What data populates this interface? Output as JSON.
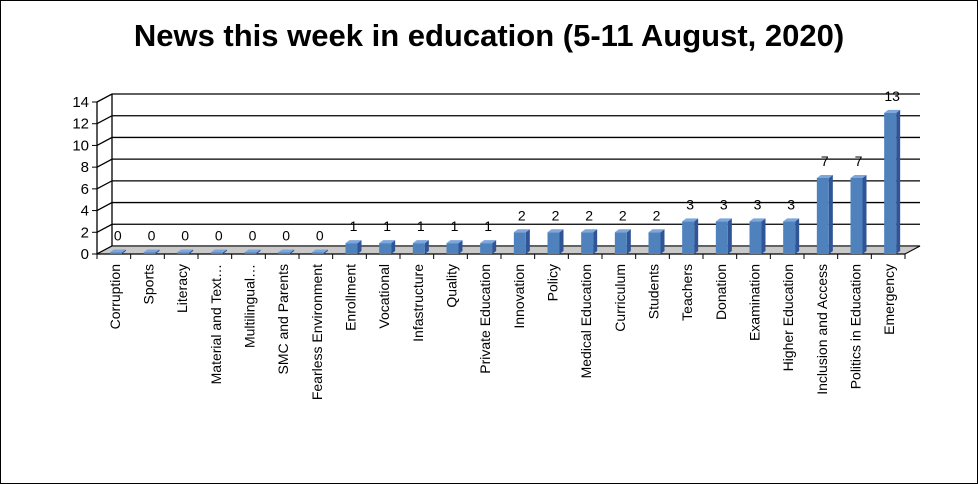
{
  "chart_data": {
    "type": "bar",
    "title": "News this week in education (5-11 August, 2020)",
    "categories": [
      "Corruption",
      "Sports",
      "Literacy",
      "Material and Text…",
      "Multilingual…",
      "SMC and Parents",
      "Fearless Environment",
      "Enrollment",
      "Vocational",
      "Infastructure",
      "Quality",
      "Private Education",
      "Innovation",
      "Policy",
      "Medical Education",
      "Curriculum",
      "Students",
      "Teachers",
      "Donation",
      "Examination",
      "Higher Education",
      "Inclusion and Access",
      "Politics in Education",
      "Emergency"
    ],
    "values": [
      0,
      0,
      0,
      0,
      0,
      0,
      0,
      1,
      1,
      1,
      1,
      1,
      2,
      2,
      2,
      2,
      2,
      3,
      3,
      3,
      3,
      7,
      7,
      13
    ],
    "yticks": [
      "0",
      "2",
      "4",
      "6",
      "8",
      "10",
      "12",
      "14"
    ],
    "ylim": [
      0,
      14
    ],
    "grid": true,
    "legend": "none",
    "bar_color": "#4f81bd"
  }
}
